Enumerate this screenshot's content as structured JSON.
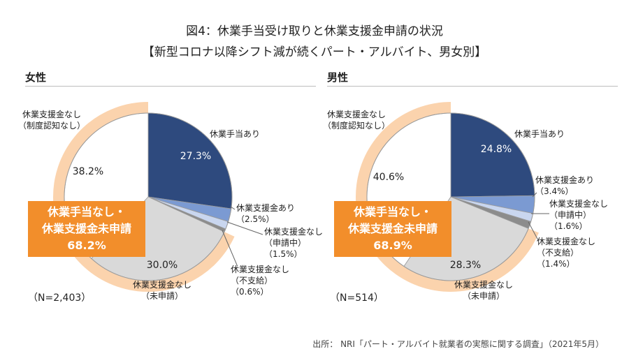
{
  "title_line1": "図4：休業手当受け取りと休業支援金申請の状況",
  "title_line2": "【新型コロナ以降シフト減が続くパート・アルバイト、男女別】",
  "source": "出所： NRI「パート・アルバイト就業者の実態に関する調査」（2021年5月）",
  "chart_data": [
    {
      "type": "pie",
      "title": "女性",
      "n_label": "（N=2,403）",
      "callout": [
        "休業手当なし・",
        "休業支援金未申請",
        "68.2%"
      ],
      "slices": [
        {
          "label": [
            "休業手当あり"
          ],
          "value": 27.3,
          "value_label": "27.3%",
          "color": "#2e4a7e"
        },
        {
          "label": [
            "休業支援金あり",
            "（2.5%）"
          ],
          "value": 2.5,
          "color": "#7b9ad2"
        },
        {
          "label": [
            "休業支援金なし",
            "（申請中）",
            "（1.5%）"
          ],
          "value": 1.5,
          "color": "#c9d6ef"
        },
        {
          "label": [
            "休業支援金なし",
            "（不支給）",
            "（0.6%）"
          ],
          "value": 0.6,
          "color": "#8c8c8c"
        },
        {
          "label": [
            "休業支援金なし",
            "（未申請）"
          ],
          "value": 30.0,
          "value_label": "30.0%",
          "color": "#d9d9d9"
        },
        {
          "label": [
            "休業支援金なし",
            "（制度認知なし）"
          ],
          "value": 38.2,
          "value_label": "38.2%",
          "color": "#ffffff"
        }
      ]
    },
    {
      "type": "pie",
      "title": "男性",
      "n_label": "（N=514）",
      "callout": [
        "休業手当なし・",
        "休業支援金未申請",
        "68.9%"
      ],
      "slices": [
        {
          "label": [
            "休業手当あり"
          ],
          "value": 24.8,
          "value_label": "24.8%",
          "color": "#2e4a7e"
        },
        {
          "label": [
            "休業支援金あり",
            "（3.4%）"
          ],
          "value": 3.4,
          "color": "#7b9ad2"
        },
        {
          "label": [
            "休業支援金なし",
            "（申請中）",
            "（1.6%）"
          ],
          "value": 1.6,
          "color": "#c9d6ef"
        },
        {
          "label": [
            "休業支援金なし",
            "（不支給）",
            "（1.4%）"
          ],
          "value": 1.4,
          "color": "#8c8c8c"
        },
        {
          "label": [
            "休業支援金なし",
            "（未申請）"
          ],
          "value": 28.3,
          "value_label": "28.3%",
          "color": "#d9d9d9"
        },
        {
          "label": [
            "休業支援金なし",
            "（制度認知なし）"
          ],
          "value": 40.6,
          "value_label": "40.6%",
          "color": "#ffffff"
        }
      ]
    }
  ],
  "colors": {
    "highlight_ring": "#fbd3ad",
    "callout_bg": "#f28e2b"
  }
}
